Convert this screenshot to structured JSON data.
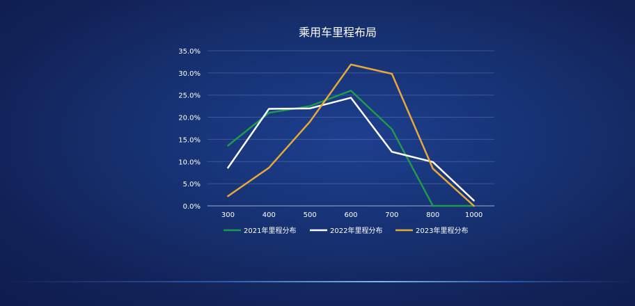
{
  "chart_data": {
    "type": "line",
    "title": "乘用车里程布局",
    "categories": [
      "300",
      "400",
      "500",
      "600",
      "700",
      "800",
      "1000"
    ],
    "y_ticks": [
      "35.0%",
      "30.0%",
      "25.0%",
      "20.0%",
      "15.0%",
      "10.0%",
      "5.0%",
      "0.0%"
    ],
    "ylim": [
      0,
      35
    ],
    "y_unit": "%",
    "grid": true,
    "legend_position": "bottom",
    "series": [
      {
        "name": "2021年里程分布",
        "color": "#1f9a4d",
        "values": [
          13.6,
          21.0,
          22.5,
          26.0,
          17.3,
          0.0,
          0.0
        ]
      },
      {
        "name": "2022年里程分布",
        "color": "#ffffff",
        "values": [
          8.6,
          21.9,
          22.0,
          24.4,
          12.2,
          9.9,
          1.2
        ]
      },
      {
        "name": "2023年里程分布",
        "color": "#e8a93a",
        "values": [
          2.2,
          8.6,
          19.0,
          31.9,
          29.8,
          8.4,
          0.0
        ]
      }
    ]
  }
}
